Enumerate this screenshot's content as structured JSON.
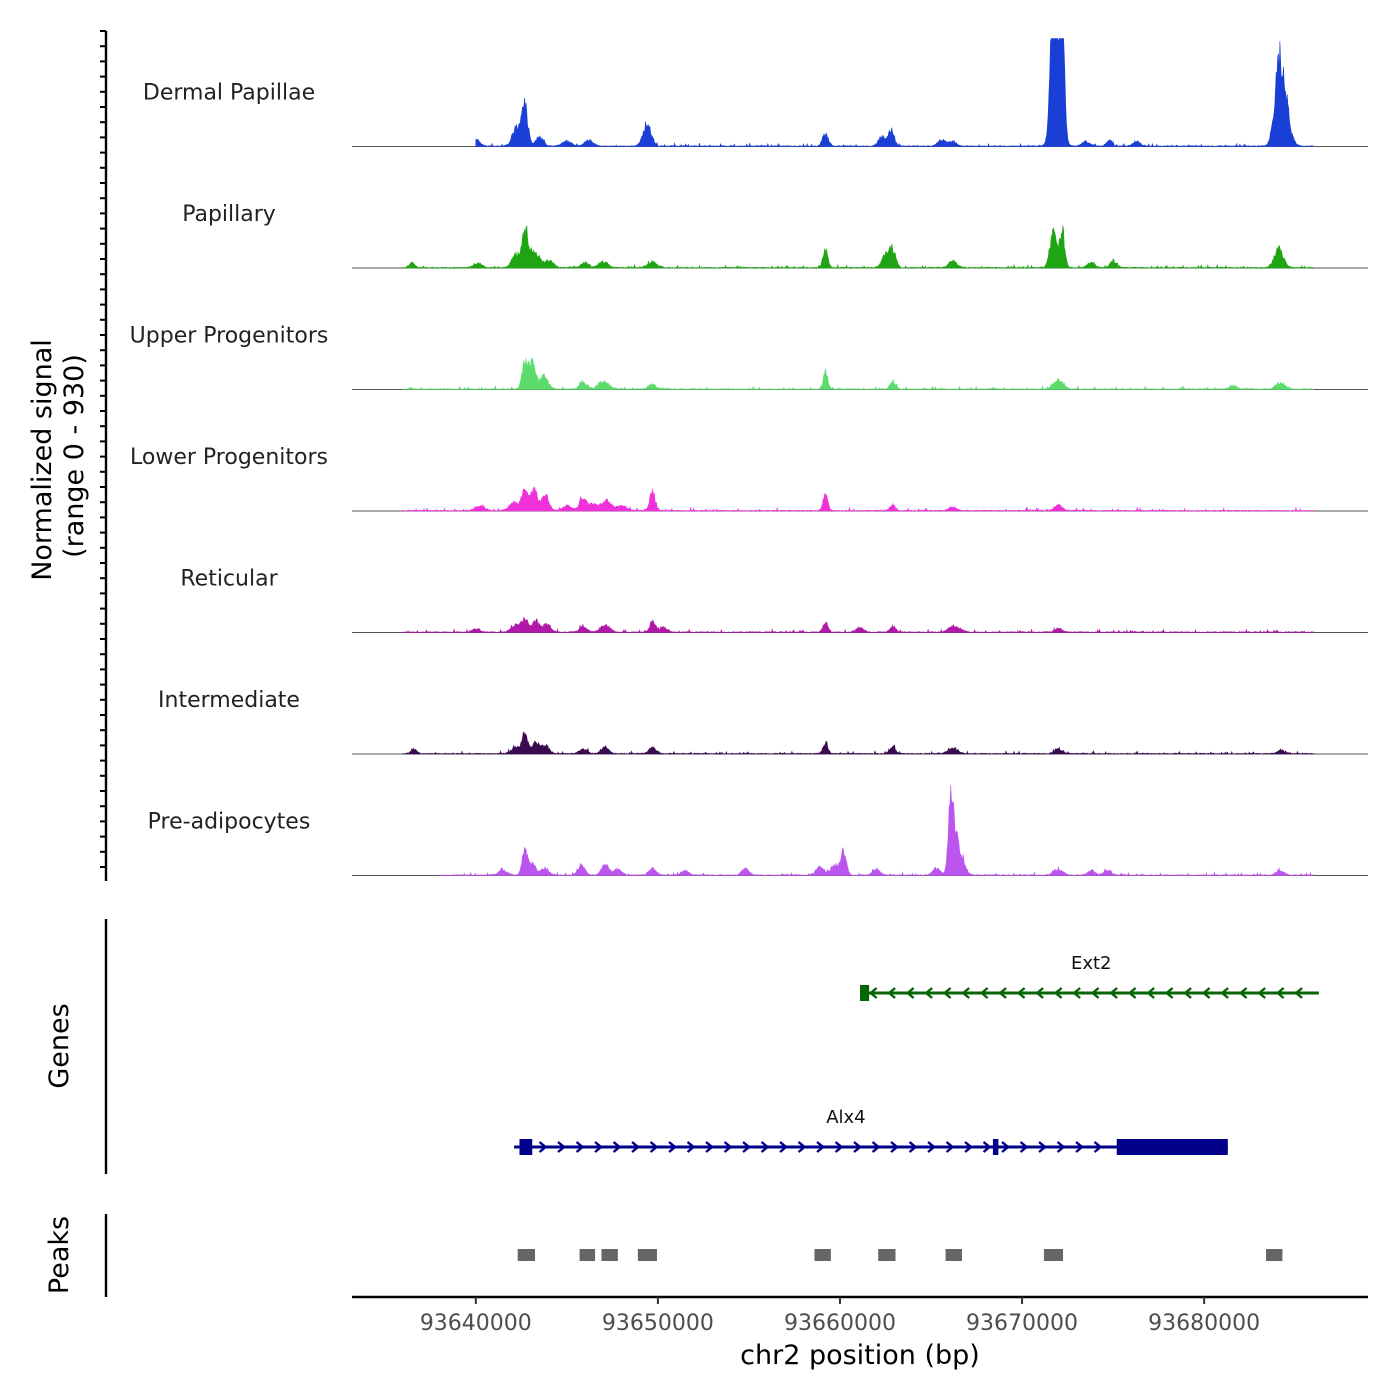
{
  "chart_data": {
    "type": "coverage",
    "signal_axis": {
      "ylabel_line1": "Normalized signal",
      "ylabel_line2": "(range 0 - 930)",
      "ylim": [
        0,
        930
      ]
    },
    "genome_axis": {
      "xlabel": "chr2 position (bp)",
      "xlim": [
        93633200,
        93689000
      ],
      "ticks": [
        93640000,
        93650000,
        93660000,
        93670000,
        93680000
      ],
      "tick_labels": [
        "93640000",
        "93650000",
        "93660000",
        "93670000",
        "93680000"
      ]
    },
    "baseline_range": [
      93633200,
      93689000
    ],
    "tracks": [
      {
        "name": "Dermal Papillae",
        "color": "#1a3fd6",
        "start": 93640000,
        "end": 93686000,
        "peaks": [
          {
            "pos": 93640000,
            "height": 55,
            "width": 220
          },
          {
            "pos": 93642300,
            "height": 170,
            "width": 260
          },
          {
            "pos": 93642700,
            "height": 300,
            "width": 160
          },
          {
            "pos": 93643500,
            "height": 75,
            "width": 200
          },
          {
            "pos": 93645000,
            "height": 40,
            "width": 250
          },
          {
            "pos": 93646200,
            "height": 45,
            "width": 250
          },
          {
            "pos": 93649400,
            "height": 180,
            "width": 220
          },
          {
            "pos": 93659200,
            "height": 110,
            "width": 150
          },
          {
            "pos": 93662300,
            "height": 80,
            "width": 180
          },
          {
            "pos": 93662800,
            "height": 120,
            "width": 170
          },
          {
            "pos": 93665600,
            "height": 60,
            "width": 200
          },
          {
            "pos": 93666200,
            "height": 40,
            "width": 200
          },
          {
            "pos": 93671700,
            "height": 880,
            "width": 140
          },
          {
            "pos": 93671900,
            "height": 700,
            "width": 250
          },
          {
            "pos": 93672200,
            "height": 930,
            "width": 120
          },
          {
            "pos": 93673500,
            "height": 40,
            "width": 200
          },
          {
            "pos": 93674800,
            "height": 50,
            "width": 160
          },
          {
            "pos": 93676300,
            "height": 40,
            "width": 200
          },
          {
            "pos": 93684100,
            "height": 530,
            "width": 240
          },
          {
            "pos": 93684400,
            "height": 350,
            "width": 280
          }
        ]
      },
      {
        "name": "Papillary",
        "color": "#1fa514",
        "start": 93636000,
        "end": 93686000,
        "peaks": [
          {
            "pos": 93636500,
            "height": 40,
            "width": 150
          },
          {
            "pos": 93640100,
            "height": 40,
            "width": 220
          },
          {
            "pos": 93642200,
            "height": 110,
            "width": 220
          },
          {
            "pos": 93642700,
            "height": 310,
            "width": 150
          },
          {
            "pos": 93643200,
            "height": 150,
            "width": 250
          },
          {
            "pos": 93644000,
            "height": 60,
            "width": 250
          },
          {
            "pos": 93646000,
            "height": 45,
            "width": 200
          },
          {
            "pos": 93647000,
            "height": 50,
            "width": 250
          },
          {
            "pos": 93649700,
            "height": 45,
            "width": 250
          },
          {
            "pos": 93659200,
            "height": 140,
            "width": 130
          },
          {
            "pos": 93662500,
            "height": 110,
            "width": 200
          },
          {
            "pos": 93662900,
            "height": 150,
            "width": 160
          },
          {
            "pos": 93666200,
            "height": 50,
            "width": 220
          },
          {
            "pos": 93671700,
            "height": 280,
            "width": 180
          },
          {
            "pos": 93672200,
            "height": 310,
            "width": 140
          },
          {
            "pos": 93673800,
            "height": 45,
            "width": 200
          },
          {
            "pos": 93675000,
            "height": 60,
            "width": 160
          },
          {
            "pos": 93684100,
            "height": 150,
            "width": 250
          }
        ]
      },
      {
        "name": "Upper Progenitors",
        "color": "#5bdc6b",
        "start": 93636000,
        "end": 93686000,
        "peaks": [
          {
            "pos": 93642700,
            "height": 260,
            "width": 150
          },
          {
            "pos": 93643100,
            "height": 220,
            "width": 160
          },
          {
            "pos": 93643700,
            "height": 110,
            "width": 250
          },
          {
            "pos": 93645900,
            "height": 60,
            "width": 200
          },
          {
            "pos": 93647000,
            "height": 60,
            "width": 300
          },
          {
            "pos": 93649700,
            "height": 40,
            "width": 200
          },
          {
            "pos": 93659200,
            "height": 150,
            "width": 120
          },
          {
            "pos": 93662900,
            "height": 60,
            "width": 150
          },
          {
            "pos": 93672000,
            "height": 80,
            "width": 250
          },
          {
            "pos": 93681600,
            "height": 30,
            "width": 200
          },
          {
            "pos": 93684200,
            "height": 50,
            "width": 250
          }
        ]
      },
      {
        "name": "Lower Progenitors",
        "color": "#f030d8",
        "start": 93636000,
        "end": 93686000,
        "peaks": [
          {
            "pos": 93640200,
            "height": 40,
            "width": 250
          },
          {
            "pos": 93642100,
            "height": 70,
            "width": 250
          },
          {
            "pos": 93642700,
            "height": 190,
            "width": 170
          },
          {
            "pos": 93643200,
            "height": 180,
            "width": 170
          },
          {
            "pos": 93643800,
            "height": 120,
            "width": 200
          },
          {
            "pos": 93645000,
            "height": 40,
            "width": 250
          },
          {
            "pos": 93645900,
            "height": 100,
            "width": 200
          },
          {
            "pos": 93646500,
            "height": 50,
            "width": 250
          },
          {
            "pos": 93647200,
            "height": 80,
            "width": 250
          },
          {
            "pos": 93648000,
            "height": 40,
            "width": 250
          },
          {
            "pos": 93649700,
            "height": 160,
            "width": 150
          },
          {
            "pos": 93659200,
            "height": 130,
            "width": 130
          },
          {
            "pos": 93662900,
            "height": 50,
            "width": 150
          },
          {
            "pos": 93666200,
            "height": 30,
            "width": 200
          },
          {
            "pos": 93672000,
            "height": 50,
            "width": 200
          }
        ]
      },
      {
        "name": "Reticular",
        "color": "#b218a8",
        "start": 93636000,
        "end": 93686000,
        "peaks": [
          {
            "pos": 93640000,
            "height": 30,
            "width": 200
          },
          {
            "pos": 93642200,
            "height": 60,
            "width": 250
          },
          {
            "pos": 93642700,
            "height": 110,
            "width": 170
          },
          {
            "pos": 93643300,
            "height": 90,
            "width": 200
          },
          {
            "pos": 93643900,
            "height": 70,
            "width": 200
          },
          {
            "pos": 93645900,
            "height": 50,
            "width": 200
          },
          {
            "pos": 93647100,
            "height": 60,
            "width": 250
          },
          {
            "pos": 93649700,
            "height": 90,
            "width": 150
          },
          {
            "pos": 93650300,
            "height": 40,
            "width": 200
          },
          {
            "pos": 93659200,
            "height": 80,
            "width": 130
          },
          {
            "pos": 93661100,
            "height": 40,
            "width": 200
          },
          {
            "pos": 93662900,
            "height": 50,
            "width": 150
          },
          {
            "pos": 93666300,
            "height": 50,
            "width": 300
          },
          {
            "pos": 93672000,
            "height": 30,
            "width": 200
          }
        ]
      },
      {
        "name": "Intermediate",
        "color": "#3a0a50",
        "start": 93636000,
        "end": 93686000,
        "peaks": [
          {
            "pos": 93636600,
            "height": 40,
            "width": 150
          },
          {
            "pos": 93642200,
            "height": 50,
            "width": 250
          },
          {
            "pos": 93642700,
            "height": 180,
            "width": 150
          },
          {
            "pos": 93643300,
            "height": 90,
            "width": 200
          },
          {
            "pos": 93643800,
            "height": 70,
            "width": 200
          },
          {
            "pos": 93645900,
            "height": 40,
            "width": 200
          },
          {
            "pos": 93647100,
            "height": 60,
            "width": 200
          },
          {
            "pos": 93649700,
            "height": 50,
            "width": 200
          },
          {
            "pos": 93659200,
            "height": 90,
            "width": 130
          },
          {
            "pos": 93662900,
            "height": 60,
            "width": 150
          },
          {
            "pos": 93666200,
            "height": 50,
            "width": 250
          },
          {
            "pos": 93672000,
            "height": 40,
            "width": 200
          },
          {
            "pos": 93684200,
            "height": 30,
            "width": 200
          }
        ]
      },
      {
        "name": "Pre-adipocytes",
        "color": "#bb55ee",
        "start": 93638000,
        "end": 93686000,
        "peaks": [
          {
            "pos": 93641500,
            "height": 40,
            "width": 250
          },
          {
            "pos": 93642700,
            "height": 210,
            "width": 150
          },
          {
            "pos": 93643100,
            "height": 90,
            "width": 200
          },
          {
            "pos": 93643800,
            "height": 60,
            "width": 200
          },
          {
            "pos": 93645800,
            "height": 80,
            "width": 200
          },
          {
            "pos": 93647100,
            "height": 90,
            "width": 200
          },
          {
            "pos": 93647800,
            "height": 50,
            "width": 200
          },
          {
            "pos": 93649700,
            "height": 60,
            "width": 200
          },
          {
            "pos": 93651500,
            "height": 40,
            "width": 200
          },
          {
            "pos": 93654800,
            "height": 60,
            "width": 180
          },
          {
            "pos": 93658900,
            "height": 80,
            "width": 200
          },
          {
            "pos": 93659700,
            "height": 90,
            "width": 200
          },
          {
            "pos": 93660200,
            "height": 200,
            "width": 150
          },
          {
            "pos": 93662000,
            "height": 50,
            "width": 200
          },
          {
            "pos": 93665300,
            "height": 60,
            "width": 200
          },
          {
            "pos": 93666100,
            "height": 530,
            "width": 130
          },
          {
            "pos": 93666300,
            "height": 300,
            "width": 220
          },
          {
            "pos": 93666700,
            "height": 120,
            "width": 200
          },
          {
            "pos": 93672000,
            "height": 50,
            "width": 250
          },
          {
            "pos": 93673800,
            "height": 40,
            "width": 200
          },
          {
            "pos": 93674700,
            "height": 40,
            "width": 200
          },
          {
            "pos": 93684200,
            "height": 40,
            "width": 200
          }
        ]
      }
    ],
    "genes_panel": {
      "label": "Genes",
      "genes": [
        {
          "name": "Ext2",
          "strand": "-",
          "start": 93661300,
          "end": 93686300,
          "color": "#066606",
          "exons": [
            {
              "start": 93661100,
              "end": 93661600
            }
          ]
        },
        {
          "name": "Alx4",
          "strand": "+",
          "start": 93642100,
          "end": 93681300,
          "color": "#00008b",
          "exons": [
            {
              "start": 93642400,
              "end": 93643100
            },
            {
              "start": 93668400,
              "end": 93668700
            },
            {
              "start": 93675200,
              "end": 93681300
            }
          ]
        }
      ]
    },
    "peaks_panel": {
      "label": "Peaks",
      "color": "#666666",
      "regions": [
        {
          "start": 93642300,
          "end": 93643250
        },
        {
          "start": 93645700,
          "end": 93646550
        },
        {
          "start": 93646900,
          "end": 93647800
        },
        {
          "start": 93648900,
          "end": 93649950
        },
        {
          "start": 93658600,
          "end": 93659500
        },
        {
          "start": 93662100,
          "end": 93663050
        },
        {
          "start": 93665800,
          "end": 93666700
        },
        {
          "start": 93671200,
          "end": 93672250
        },
        {
          "start": 93683400,
          "end": 93684300
        }
      ]
    }
  }
}
